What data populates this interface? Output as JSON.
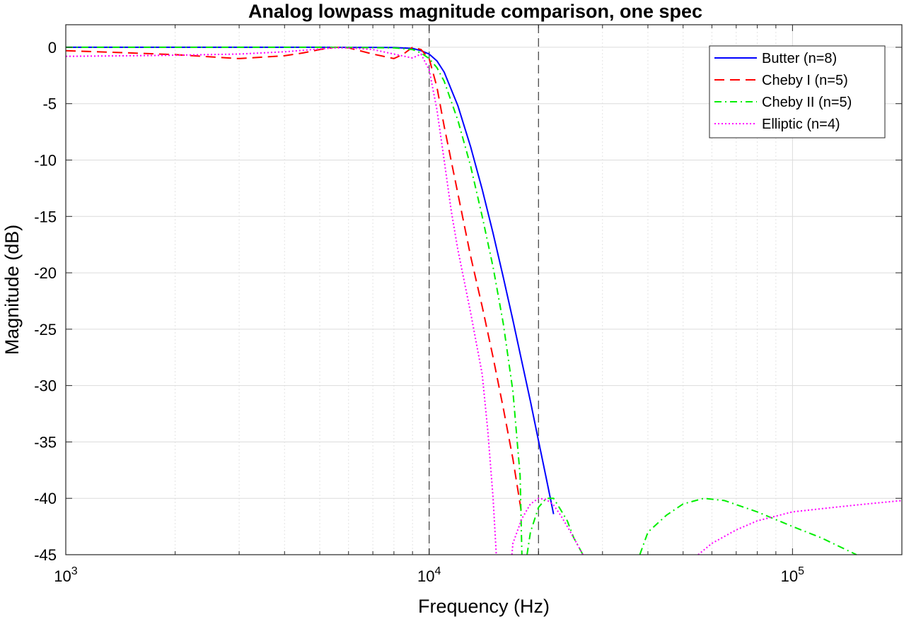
{
  "chart_data": {
    "type": "line",
    "title": "Analog lowpass magnitude comparison, one spec",
    "xlabel": "Frequency (Hz)",
    "ylabel": "Magnitude (dB)",
    "xscale": "log",
    "xlim": [
      1000,
      200000
    ],
    "ylim": [
      -45,
      2
    ],
    "grid": true,
    "legend_position": "top-right",
    "x_ticks": [
      {
        "value": 1000,
        "base": "10",
        "exp": "3"
      },
      {
        "value": 10000,
        "base": "10",
        "exp": "4"
      },
      {
        "value": 100000,
        "base": "10",
        "exp": "5"
      }
    ],
    "y_ticks": [
      0,
      -5,
      -10,
      -15,
      -20,
      -25,
      -30,
      -35,
      -40,
      -45
    ],
    "y_tick_labels": [
      "0",
      "-5",
      "-10",
      "-15",
      "-20",
      "-25",
      "-30",
      "-35",
      "-40",
      "-45"
    ],
    "vlines": [
      10000,
      20000
    ],
    "series": [
      {
        "name": "Butter (n=8)",
        "color": "#0000ff",
        "dash": "solid",
        "x": [
          1000,
          5000,
          8000,
          9000,
          9500,
          10000,
          10500,
          11000,
          12000,
          13000,
          14000,
          15000,
          16000,
          17000,
          18000,
          19000,
          20000,
          21000,
          22000
        ],
        "y": [
          0,
          0,
          -0.02,
          -0.1,
          -0.3,
          -0.6,
          -1.2,
          -2.2,
          -5.2,
          -8.8,
          -12.6,
          -16.5,
          -20.4,
          -24.2,
          -27.9,
          -31.4,
          -34.9,
          -38.2,
          -41.4
        ]
      },
      {
        "name": "Cheby I (n=5)",
        "color": "#ff0000",
        "dash": "long-dash",
        "x": [
          1000,
          1500,
          2000,
          3000,
          4000,
          4500,
          5000,
          5500,
          6000,
          7000,
          8000,
          8500,
          9000,
          9500,
          10000,
          10500,
          11000,
          12000,
          13000,
          14000,
          15000,
          16000,
          17000,
          18000
        ],
        "y": [
          -0.3,
          -0.5,
          -0.65,
          -1.0,
          -0.75,
          -0.5,
          -0.2,
          0,
          -0.05,
          -0.6,
          -1.0,
          -0.6,
          0,
          -0.2,
          -1.0,
          -3.5,
          -7.0,
          -13.0,
          -18.5,
          -23.0,
          -27.5,
          -32.0,
          -36.5,
          -41.5
        ]
      },
      {
        "name": "Cheby II (n=5)",
        "color": "#00ee00",
        "dash": "dash-dot",
        "x": [
          1000,
          5000,
          8000,
          9000,
          9500,
          10000,
          10500,
          11000,
          12000,
          13000,
          14000,
          15000,
          16000,
          17000,
          17800,
          18000,
          null,
          18600,
          19000,
          20000,
          21000,
          22000,
          23000,
          24000,
          25000,
          26000,
          26500,
          null,
          38000,
          40000,
          45000,
          50000,
          57000,
          65000,
          80000,
          100000,
          120000,
          150000
        ],
        "y": [
          0,
          0,
          -0.05,
          -0.2,
          -0.5,
          -1.0,
          -1.8,
          -3.0,
          -6.5,
          -10.5,
          -15.0,
          -19.5,
          -24.5,
          -30.5,
          -38.0,
          -45.0,
          null,
          -45.0,
          -43.0,
          -40.8,
          -40.0,
          -40.0,
          -41.0,
          -42.0,
          -43.5,
          -44.5,
          -45.0,
          null,
          -45.0,
          -43.0,
          -41.5,
          -40.5,
          -40.0,
          -40.2,
          -41.2,
          -42.5,
          -43.5,
          -45.0
        ]
      },
      {
        "name": "Elliptic (n=4)",
        "color": "#ff00ff",
        "dash": "dotted",
        "x": [
          1000,
          1500,
          2000,
          3000,
          4000,
          5000,
          5500,
          6000,
          7000,
          8000,
          9000,
          9500,
          10000,
          10500,
          11000,
          11500,
          12000,
          13000,
          14000,
          14500,
          15000,
          15300,
          null,
          16900,
          17000,
          18000,
          19000,
          20000,
          21000,
          22000,
          23000,
          24000,
          25000,
          26500,
          null,
          55000,
          60000,
          70000,
          80000,
          100000,
          130000,
          160000,
          200000
        ],
        "y": [
          -0.8,
          -0.75,
          -0.7,
          -0.6,
          -0.4,
          -0.15,
          -0.05,
          -0.05,
          -0.2,
          -0.6,
          -0.95,
          -0.6,
          -2.0,
          -5.5,
          -10.0,
          -14.5,
          -18.0,
          -23.5,
          -29.0,
          -34.0,
          -40.0,
          -45.0,
          null,
          -45.0,
          -44.0,
          -41.8,
          -40.5,
          -40.0,
          -40.1,
          -40.6,
          -41.5,
          -42.5,
          -43.5,
          -45.0,
          null,
          -45.0,
          -44.0,
          -42.8,
          -42.0,
          -41.2,
          -40.8,
          -40.5,
          -40.2
        ]
      }
    ]
  }
}
